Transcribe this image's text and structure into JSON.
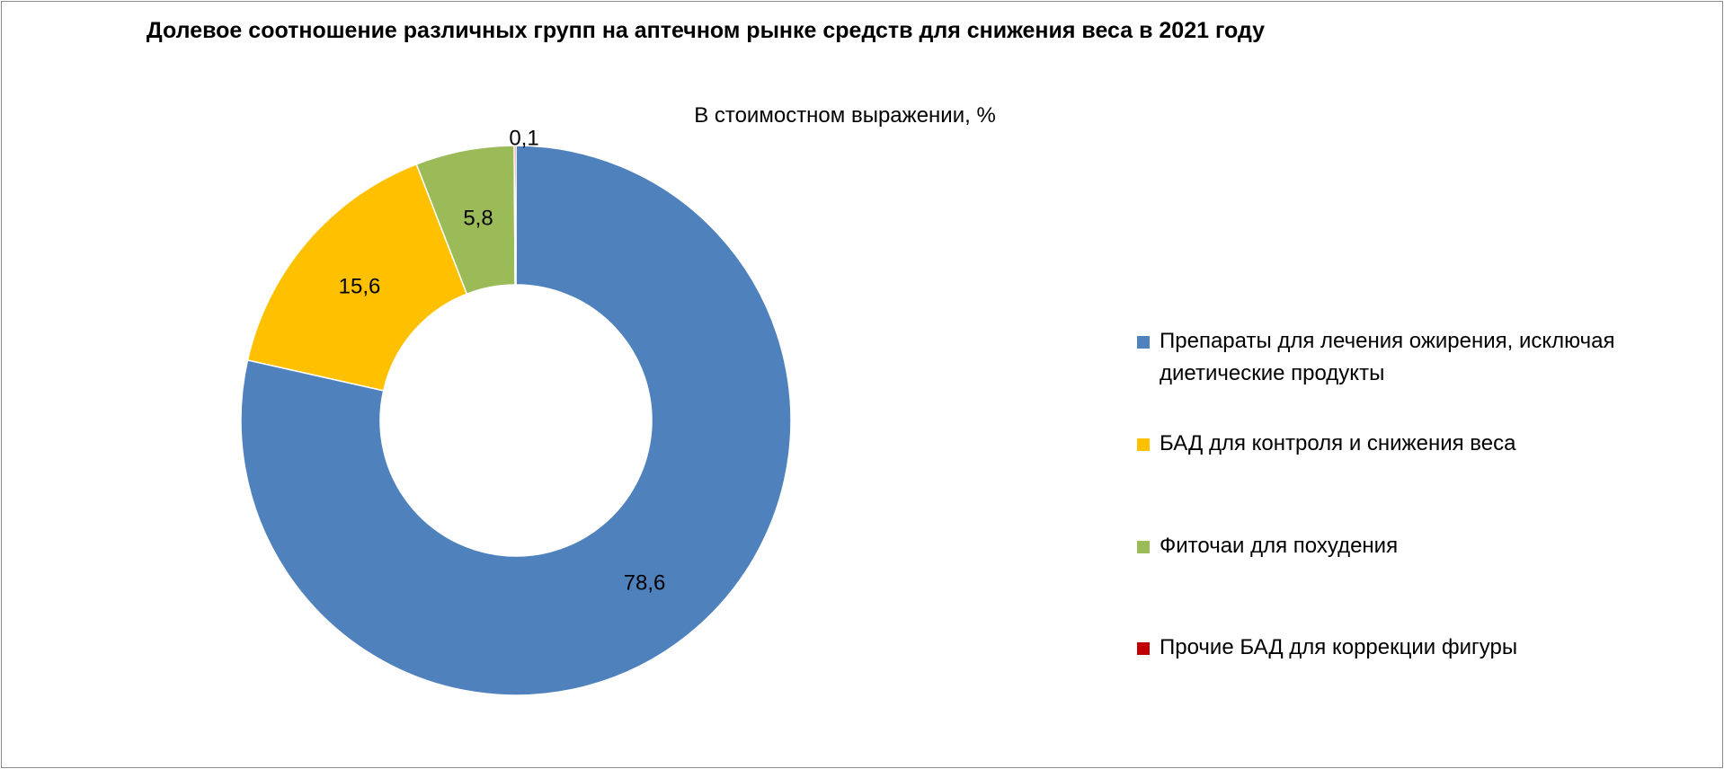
{
  "chart_data": {
    "type": "pie",
    "title": "Долевое соотношение различных групп на аптечном рынке средств для снижения веса в 2021 году",
    "subtitle": "В стоимостном выражении, %",
    "categories": [
      "Препараты для лечения ожирения, исключая диетические продукты",
      "БАД для контроля и снижения веса",
      "Фиточаи для похудения",
      "Прочие БАД для коррекции фигуры"
    ],
    "values": [
      78.6,
      15.6,
      5.8,
      0.1
    ],
    "value_labels": [
      "78,6",
      "15,6",
      "5,8",
      "0,1"
    ],
    "colors": [
      "#4F81BD",
      "#FFC000",
      "#9BBB59",
      "#C00000"
    ],
    "donut": true,
    "legend_position": "right"
  }
}
